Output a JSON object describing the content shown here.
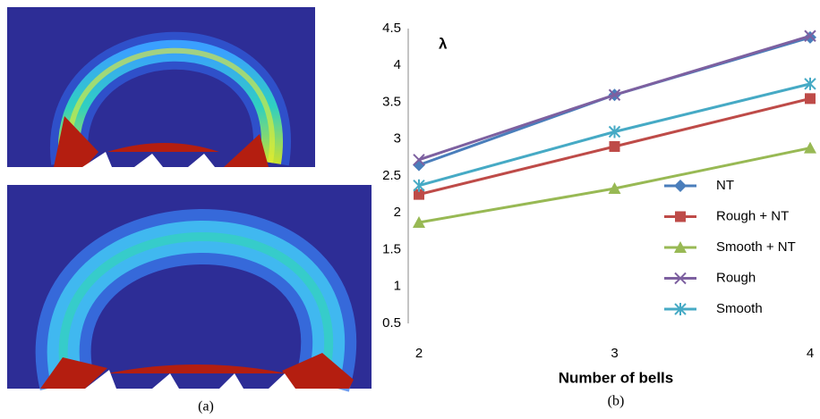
{
  "subfigure_labels": [
    "(a)",
    "(b)"
  ],
  "chart_data": {
    "type": "line",
    "y_label": "λ",
    "x_label": "Number of bells",
    "x": [
      2,
      3,
      4
    ],
    "xlim": [
      2,
      4
    ],
    "xticks": [
      2,
      3,
      4
    ],
    "ylim": [
      0.5,
      4.5
    ],
    "yticks": [
      0.5,
      1,
      1.5,
      2,
      2.5,
      3,
      3.5,
      4,
      4.5
    ],
    "grid": false,
    "legend": "lower right",
    "series": [
      {
        "name": "NT",
        "color": "#4a7ebb",
        "marker": "diamond",
        "values": [
          2.65,
          3.6,
          4.38
        ]
      },
      {
        "name": "Rough + NT",
        "color": "#be4b48",
        "marker": "square",
        "values": [
          2.25,
          2.9,
          3.55
        ]
      },
      {
        "name": "Smooth + NT",
        "color": "#98b954",
        "marker": "triangle",
        "values": [
          1.87,
          2.33,
          2.88
        ]
      },
      {
        "name": "Rough",
        "color": "#7d60a0",
        "marker": "x",
        "values": [
          2.72,
          3.6,
          4.4
        ]
      },
      {
        "name": "Smooth",
        "color": "#46aac5",
        "marker": "star",
        "values": [
          2.37,
          3.1,
          3.75
        ]
      }
    ]
  }
}
